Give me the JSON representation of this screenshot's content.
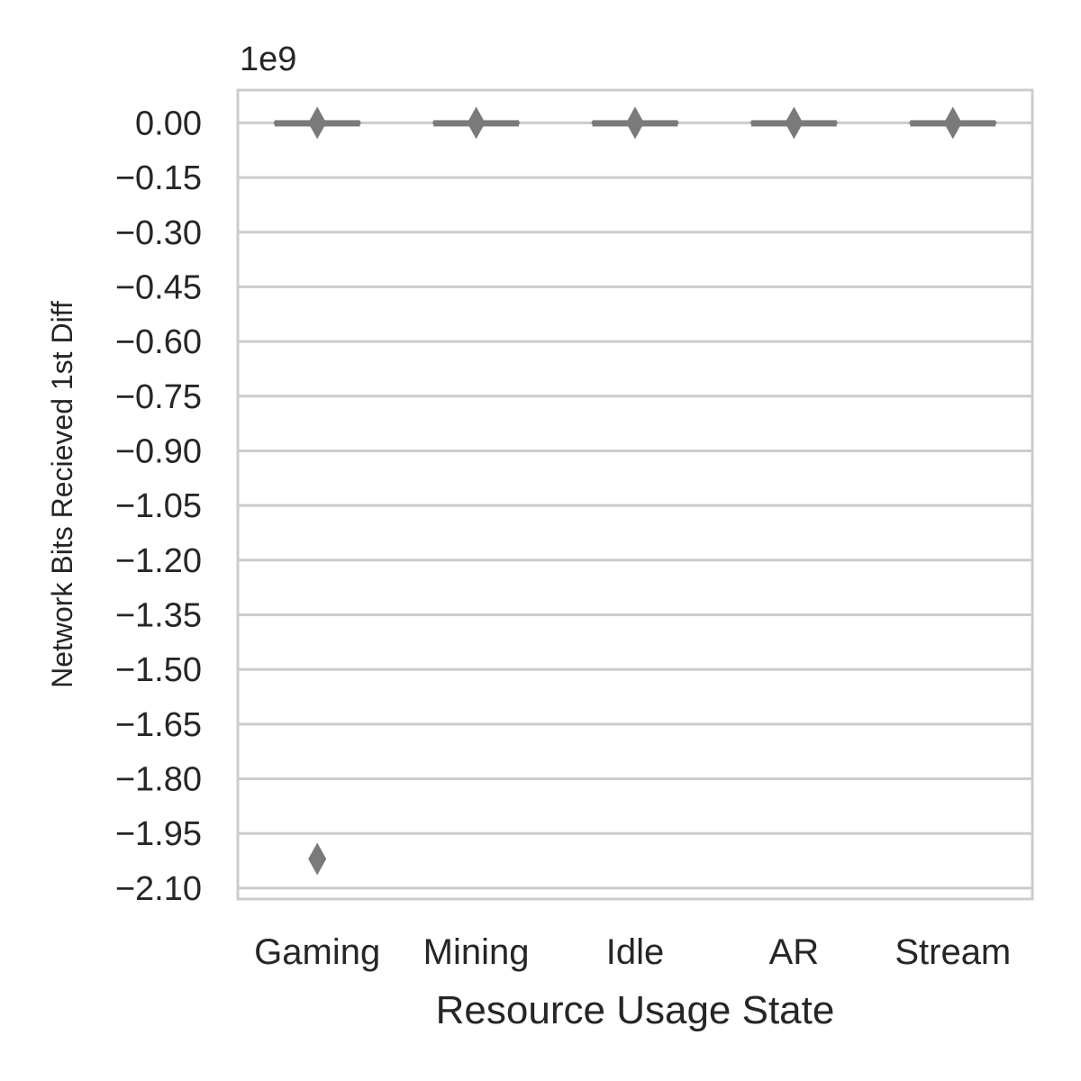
{
  "chart_data": {
    "type": "box",
    "xlabel": "Resource Usage State",
    "ylabel": "Network Bits Recieved 1st Diff",
    "y_offset_label": "1e9",
    "y_scale": 1000000000,
    "ylim": [
      -2.13,
      0.09
    ],
    "yticks": [
      0.0,
      -0.15,
      -0.3,
      -0.45,
      -0.6,
      -0.75,
      -0.9,
      -1.05,
      -1.2,
      -1.35,
      -1.5,
      -1.65,
      -1.8,
      -1.95,
      -2.1
    ],
    "ytick_labels": [
      "0.00",
      "−0.15",
      "−0.30",
      "−0.45",
      "−0.60",
      "−0.75",
      "−0.90",
      "−1.05",
      "−1.20",
      "−1.35",
      "−1.50",
      "−1.65",
      "−1.80",
      "−1.95",
      "−2.10"
    ],
    "categories": [
      "Gaming",
      "Mining",
      "Idle",
      "AR",
      "Stream"
    ],
    "grid": true,
    "box_color": "#7a7a7a",
    "grid_color": "#cccccc",
    "boxes": [
      {
        "category": "Gaming",
        "q1": 0.0,
        "median": 0.0,
        "q3": 0.0,
        "whisker_low": 0.0,
        "whisker_high": 0.0,
        "outliers": [
          0.0,
          -2.02
        ]
      },
      {
        "category": "Mining",
        "q1": 0.0,
        "median": 0.0,
        "q3": 0.0,
        "whisker_low": 0.0,
        "whisker_high": 0.0,
        "outliers": [
          0.0
        ]
      },
      {
        "category": "Idle",
        "q1": 0.0,
        "median": 0.0,
        "q3": 0.0,
        "whisker_low": 0.0,
        "whisker_high": 0.0,
        "outliers": [
          0.0
        ]
      },
      {
        "category": "AR",
        "q1": 0.0,
        "median": 0.0,
        "q3": 0.0,
        "whisker_low": 0.0,
        "whisker_high": 0.0,
        "outliers": [
          0.0
        ]
      },
      {
        "category": "Stream",
        "q1": 0.0,
        "median": 0.0,
        "q3": 0.0,
        "whisker_low": 0.0,
        "whisker_high": 0.0,
        "outliers": [
          0.0
        ]
      }
    ]
  }
}
